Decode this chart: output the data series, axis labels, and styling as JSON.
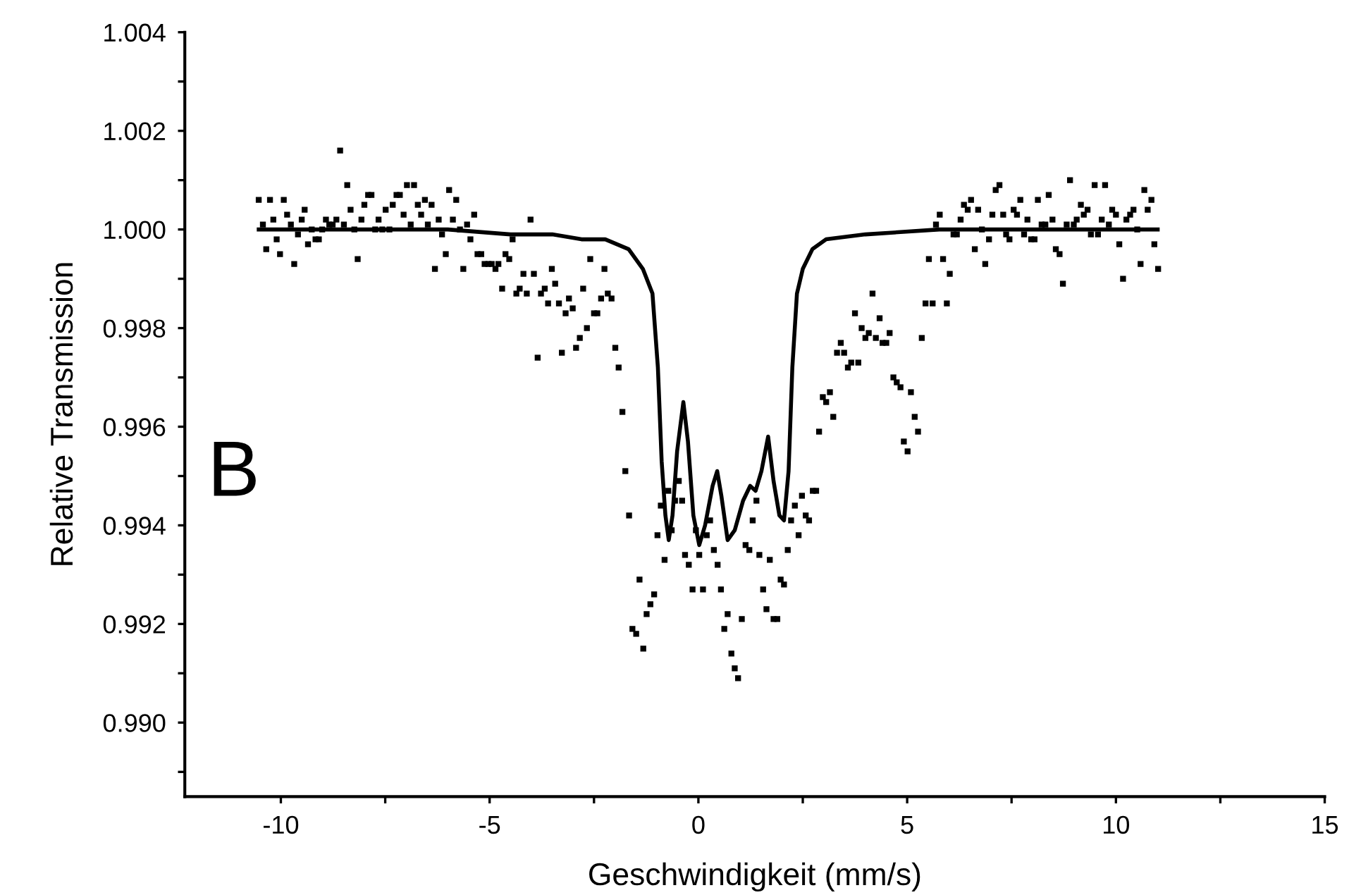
{
  "chart_data": {
    "type": "scatter",
    "xlabel": "Geschwindigkeit (mm/s)",
    "ylabel": "Relative Transmission",
    "annotations": [
      "B"
    ],
    "xlim": [
      -12.3,
      15
    ],
    "ylim": [
      0.9885,
      1.004
    ],
    "xticks": [
      -10,
      {
        "value": -7.5,
        "label": null
      },
      -5,
      {
        "value": -2.5,
        "label": null
      },
      0,
      {
        "value": 2.5,
        "label": null
      },
      5,
      {
        "value": 7.5,
        "label": null
      },
      10,
      {
        "value": 12.5,
        "label": null
      },
      15
    ],
    "yticks": [
      {
        "value": 0.989,
        "label": null
      },
      {
        "value": 0.99,
        "label": "0.990"
      },
      {
        "value": 0.991,
        "label": null
      },
      {
        "value": 0.992,
        "label": "0.992"
      },
      {
        "value": 0.993,
        "label": null
      },
      {
        "value": 0.994,
        "label": "0.994"
      },
      {
        "value": 0.995,
        "label": null
      },
      {
        "value": 0.996,
        "label": "0.996"
      },
      {
        "value": 0.997,
        "label": null
      },
      {
        "value": 0.998,
        "label": "0.998"
      },
      {
        "value": 0.999,
        "label": null
      },
      {
        "value": 1.0,
        "label": "1.000"
      },
      {
        "value": 1.001,
        "label": null
      },
      {
        "value": 1.002,
        "label": "1.002"
      },
      {
        "value": 1.003,
        "label": null
      },
      {
        "value": 1.004,
        "label": "1.004"
      }
    ],
    "grid": false,
    "legend": false,
    "series": [
      {
        "color": "#000000",
        "marker": "square",
        "x": [
          -10.53,
          -10.43,
          -10.35,
          -10.26,
          -10.18,
          -10.1,
          -10.02,
          -9.93,
          -9.85,
          -9.76,
          -9.68,
          -9.59,
          -9.5,
          -9.43,
          -9.35,
          -9.26,
          -9.17,
          -9.09,
          -9.01,
          -8.92,
          -8.84,
          -8.76,
          -8.67,
          -8.58,
          -8.49,
          -8.41,
          -8.33,
          -8.24,
          -8.16,
          -8.07,
          -8.0,
          -7.91,
          -7.83,
          -7.74,
          -7.66,
          -7.57,
          -7.49,
          -7.4,
          -7.32,
          -7.23,
          -7.15,
          -7.06,
          -6.98,
          -6.89,
          -6.81,
          -6.72,
          -6.64,
          -6.55,
          -6.48,
          -6.39,
          -6.31,
          -6.22,
          -6.14,
          -6.05,
          -5.97,
          -5.88,
          -5.8,
          -5.71,
          -5.63,
          -5.54,
          -5.46,
          -5.37,
          -5.29,
          -5.2,
          -5.12,
          -5.03,
          -4.95,
          -4.86,
          -4.79,
          -4.7,
          -4.62,
          -4.53,
          -4.45,
          -4.36,
          -4.28,
          -4.19,
          -4.11,
          -4.02,
          -3.94,
          -3.85,
          -3.77,
          -3.68,
          -3.6,
          -3.51,
          -3.43,
          -3.34,
          -3.27,
          -3.18,
          -3.1,
          -3.01,
          -2.93,
          -2.84,
          -2.76,
          -2.67,
          -2.59,
          -2.5,
          -2.42,
          -2.33,
          -2.25,
          -2.17,
          -2.08,
          -1.99,
          -1.91,
          -1.82,
          -1.75,
          -1.66,
          -1.58,
          -1.49,
          -1.41,
          -1.32,
          -1.24,
          -1.15,
          -1.06,
          -0.98,
          -0.9,
          -0.81,
          -0.72,
          -0.64,
          -0.56,
          -0.47,
          -0.39,
          -0.32,
          -0.23,
          -0.14,
          -0.06,
          0.02,
          0.11,
          0.2,
          0.28,
          0.37,
          0.46,
          0.54,
          0.62,
          0.7,
          0.79,
          0.87,
          0.95,
          1.04,
          1.13,
          1.22,
          1.3,
          1.39,
          1.46,
          1.55,
          1.63,
          1.71,
          1.8,
          1.89,
          1.97,
          2.05,
          2.14,
          2.22,
          2.31,
          2.4,
          2.48,
          2.57,
          2.65,
          2.74,
          2.82,
          2.89,
          2.98,
          3.06,
          3.15,
          3.23,
          3.32,
          3.41,
          3.49,
          3.58,
          3.66,
          3.75,
          3.83,
          3.91,
          4.0,
          4.08,
          4.17,
          4.25,
          4.34,
          4.41,
          4.5,
          4.58,
          4.67,
          4.75,
          4.84,
          4.92,
          5.01,
          5.09,
          5.18,
          5.26,
          5.35,
          5.44,
          5.52,
          5.61,
          5.69,
          5.78,
          5.86,
          5.95,
          6.02,
          6.11,
          6.19,
          6.28,
          6.36,
          6.45,
          6.53,
          6.62,
          6.7,
          6.79,
          6.87,
          6.96,
          7.04,
          7.12,
          7.21,
          7.3,
          7.37,
          7.45,
          7.55,
          7.63,
          7.71,
          7.8,
          7.88,
          7.97,
          8.05,
          8.13,
          8.22,
          8.31,
          8.39,
          8.48,
          8.56,
          8.65,
          8.73,
          8.82,
          8.9,
          8.99,
          9.06,
          9.16,
          9.23,
          9.32,
          9.4,
          9.49,
          9.57,
          9.66,
          9.74,
          9.83,
          9.91,
          10.0,
          10.08,
          10.17,
          10.25,
          10.34,
          10.42,
          10.51,
          10.59,
          10.68,
          10.76,
          10.85,
          10.92,
          11.01
        ],
        "values": [
          1.0006,
          1.0001,
          0.9996,
          1.0006,
          1.0002,
          0.9998,
          0.9995,
          1.0006,
          1.0003,
          1.0001,
          0.9993,
          0.9999,
          1.0002,
          1.0004,
          0.9997,
          1.0,
          0.9998,
          0.9998,
          1.0,
          1.0002,
          1.0001,
          1.0001,
          1.0002,
          1.0016,
          1.0001,
          1.0009,
          1.0004,
          1.0,
          0.9994,
          1.0002,
          1.0005,
          1.0007,
          1.0007,
          1.0,
          1.0002,
          1.0,
          1.0004,
          1.0,
          1.0005,
          1.0007,
          1.0007,
          1.0003,
          1.0009,
          1.0001,
          1.0009,
          1.0005,
          1.0003,
          1.0006,
          1.0001,
          1.0005,
          0.9992,
          1.0002,
          0.9999,
          0.9995,
          1.0008,
          1.0002,
          1.0006,
          1.0,
          0.9992,
          1.0001,
          0.9998,
          1.0003,
          0.9995,
          0.9995,
          0.9993,
          0.9993,
          0.9993,
          0.9992,
          0.9993,
          0.9988,
          0.9995,
          0.9994,
          0.9998,
          0.9987,
          0.9988,
          0.9991,
          0.9987,
          1.0002,
          0.9991,
          0.9974,
          0.9987,
          0.9988,
          0.9985,
          0.9992,
          0.9989,
          0.9985,
          0.9975,
          0.9983,
          0.9986,
          0.9984,
          0.9976,
          0.9978,
          0.9988,
          0.998,
          0.9994,
          0.9983,
          0.9983,
          0.9986,
          0.9992,
          0.9987,
          0.9986,
          0.9976,
          0.9972,
          0.9963,
          0.9951,
          0.9942,
          0.9919,
          0.9918,
          0.9929,
          0.9915,
          0.9922,
          0.9924,
          0.9926,
          0.9938,
          0.9944,
          0.9933,
          0.9947,
          0.9939,
          0.9945,
          0.9949,
          0.9945,
          0.9934,
          0.9932,
          0.9927,
          0.9939,
          0.9934,
          0.9927,
          0.9938,
          0.9941,
          0.9935,
          0.9932,
          0.9927,
          0.9919,
          0.9922,
          0.9914,
          0.9911,
          0.9909,
          0.9921,
          0.9936,
          0.9935,
          0.9941,
          0.9945,
          0.9934,
          0.9927,
          0.9923,
          0.9933,
          0.9921,
          0.9921,
          0.9929,
          0.9928,
          0.9935,
          0.9941,
          0.9944,
          0.9938,
          0.9946,
          0.9942,
          0.9941,
          0.9947,
          0.9947,
          0.9959,
          0.9966,
          0.9965,
          0.9967,
          0.9962,
          0.9975,
          0.9977,
          0.9975,
          0.9972,
          0.9973,
          0.9983,
          0.9973,
          0.998,
          0.9978,
          0.9979,
          0.9987,
          0.9978,
          0.9982,
          0.9977,
          0.9977,
          0.9979,
          0.997,
          0.9969,
          0.9968,
          0.9957,
          0.9955,
          0.9967,
          0.9962,
          0.9959,
          0.9978,
          0.9985,
          0.9994,
          0.9985,
          1.0001,
          1.0003,
          0.9994,
          0.9985,
          0.9991,
          0.9999,
          0.9999,
          1.0002,
          1.0005,
          1.0004,
          1.0006,
          0.9996,
          1.0004,
          1.0,
          0.9993,
          0.9998,
          1.0003,
          1.0008,
          1.0009,
          1.0003,
          0.9999,
          0.9998,
          1.0004,
          1.0003,
          1.0006,
          0.9999,
          1.0002,
          0.9998,
          0.9998,
          1.0006,
          1.0001,
          1.0001,
          1.0007,
          1.0002,
          0.9996,
          0.9995,
          0.9989,
          1.0001,
          1.001,
          1.0001,
          1.0002,
          1.0005,
          1.0003,
          1.0004,
          0.9999,
          1.0009,
          0.9999,
          1.0002,
          1.0009,
          1.0001,
          1.0004,
          1.0003,
          0.9997,
          0.999,
          1.0002,
          1.0003,
          1.0004,
          1.0,
          0.9993,
          1.0008,
          1.0004,
          1.0006,
          0.9997,
          0.9992
        ]
      },
      {
        "type": "line",
        "color": "#000000",
        "marker": "none",
        "line_style": "solid",
        "x": [
          -10.53,
          -8,
          -6,
          -4.5,
          -3.5,
          -2.8,
          -2.23,
          -1.67,
          -1.33,
          -1.1,
          -0.97,
          -0.88,
          -0.79,
          -0.71,
          -0.62,
          -0.51,
          -0.36,
          -0.25,
          -0.12,
          0.02,
          0.16,
          0.34,
          0.45,
          0.55,
          0.7,
          0.87,
          1.07,
          1.24,
          1.37,
          1.51,
          1.67,
          1.8,
          1.94,
          2.05,
          2.16,
          2.25,
          2.36,
          2.5,
          2.73,
          3.06,
          4.0,
          5.77,
          8,
          11.0
        ],
        "values": [
          1.0,
          1.0,
          1.0,
          0.9999,
          0.9999,
          0.9998,
          0.9998,
          0.9996,
          0.9992,
          0.9987,
          0.9972,
          0.9953,
          0.9942,
          0.9937,
          0.9942,
          0.9955,
          0.9965,
          0.9957,
          0.9942,
          0.9936,
          0.994,
          0.9948,
          0.9951,
          0.9946,
          0.9937,
          0.9939,
          0.9945,
          0.9948,
          0.9947,
          0.9951,
          0.9958,
          0.9949,
          0.9942,
          0.9941,
          0.9951,
          0.9972,
          0.9987,
          0.9992,
          0.9996,
          0.9998,
          0.9999,
          1.0,
          1.0,
          1.0
        ]
      }
    ]
  }
}
